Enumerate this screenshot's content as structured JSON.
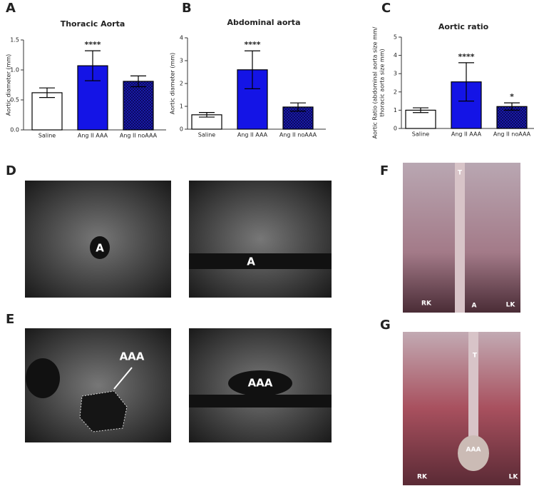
{
  "chart_data": [
    {
      "type": "bar",
      "panel": "A",
      "title": "Thoracic Aorta",
      "y_label": [
        "Aortic diameter (mm)"
      ],
      "categories": [
        "Saline",
        "Ang II AAA",
        "Ang II noAAA"
      ],
      "values": [
        0.62,
        1.07,
        0.81
      ],
      "errors": [
        0.08,
        0.25,
        0.09
      ],
      "significance": [
        null,
        "****",
        null
      ],
      "colors": [
        "#ffffff",
        "#1414e6",
        "#1a1aa8"
      ],
      "checkered": [
        false,
        false,
        true
      ],
      "ylim": [
        0,
        1.5
      ],
      "yticks": [
        {
          "value": 0,
          "label": "0.0"
        },
        0.5,
        {
          "value": 1,
          "label": "1.0"
        },
        1.5
      ]
    },
    {
      "type": "bar",
      "panel": "B",
      "title": "Abdominal aorta",
      "y_label": [
        "Aortic diameter (mm)"
      ],
      "categories": [
        "Saline",
        "Ang II AAA",
        "Ang II noAAA"
      ],
      "values": [
        0.63,
        2.6,
        0.97
      ],
      "errors": [
        0.1,
        0.83,
        0.18
      ],
      "significance": [
        null,
        "****",
        null
      ],
      "colors": [
        "#ffffff",
        "#1414e6",
        "#1a1aa8"
      ],
      "checkered": [
        false,
        false,
        true
      ],
      "ylim": [
        0,
        4
      ],
      "yticks": [
        0,
        1,
        2,
        3,
        4
      ]
    },
    {
      "type": "bar",
      "panel": "C",
      "title": "Aortic ratio",
      "y_label": [
        "Aortic Ratio (abdominal aorta size mm/",
        "thoracic aorta size mm)"
      ],
      "categories": [
        "Saline",
        "Ang II AAA",
        "Ang II noAAA"
      ],
      "values": [
        1.0,
        2.55,
        1.2
      ],
      "errors": [
        0.13,
        1.05,
        0.2
      ],
      "significance": [
        null,
        "****",
        "*"
      ],
      "colors": [
        "#ffffff",
        "#1414e6",
        "#1a1aa8"
      ],
      "checkered": [
        false,
        false,
        true
      ],
      "ylim": [
        0,
        5
      ],
      "yticks": [
        0,
        1,
        2,
        3,
        4,
        5
      ]
    }
  ],
  "image_panels": [
    {
      "letter": "D",
      "images": [
        [
          "A"
        ],
        [
          "A"
        ]
      ]
    },
    {
      "letter": "E",
      "images": [
        [
          "AAA"
        ],
        [
          "AAA"
        ]
      ]
    },
    {
      "letter": "F",
      "images": [
        [
          "T",
          "RK",
          "A",
          "LK"
        ]
      ]
    },
    {
      "letter": "G",
      "images": [
        [
          "T",
          "AAA",
          "RK",
          "LK"
        ]
      ]
    }
  ]
}
